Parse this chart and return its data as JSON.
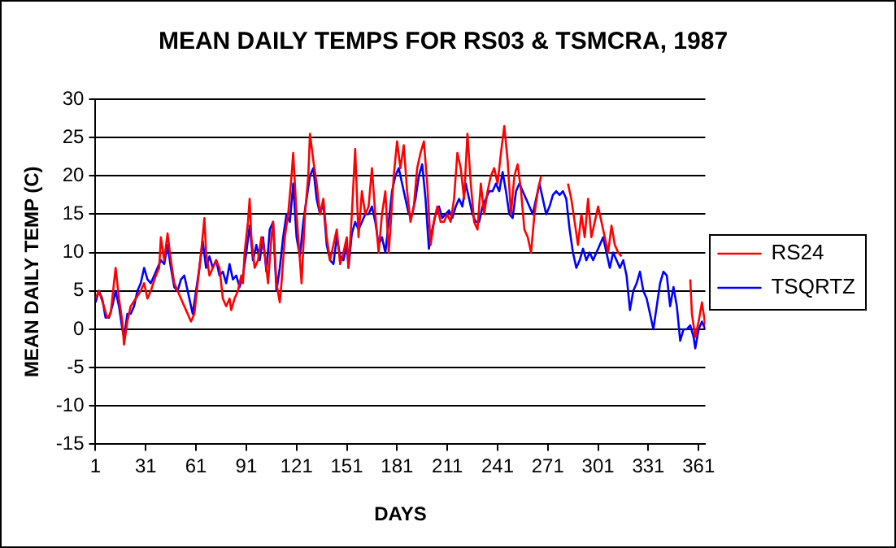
{
  "chart_data": {
    "type": "line",
    "title": "MEAN DAILY TEMPS FOR RS03 & TSMCRA, 1987",
    "xlabel": "DAYS",
    "ylabel": "MEAN DAILY TEMP (C)",
    "xlim": [
      1,
      365
    ],
    "xticks": [
      1,
      31,
      61,
      91,
      121,
      151,
      181,
      211,
      241,
      271,
      301,
      331,
      361
    ],
    "ylim": [
      -15,
      30
    ],
    "yticks": [
      -15,
      -10,
      -5,
      0,
      5,
      10,
      15,
      20,
      25,
      30
    ],
    "grid": "y",
    "legend": "right",
    "marker": "none",
    "line_style": "solid",
    "series": [
      {
        "name": "RS24",
        "color": "#ff0000",
        "x": [
          1,
          3,
          6,
          8,
          10,
          12,
          13,
          15,
          17,
          18,
          20,
          22,
          25,
          28,
          30,
          32,
          34,
          37,
          39,
          40,
          42,
          44,
          46,
          48,
          50,
          52,
          54,
          56,
          58,
          60,
          62,
          64,
          66,
          67,
          69,
          71,
          73,
          75,
          77,
          79,
          81,
          82,
          84,
          86,
          88,
          89,
          90,
          92,
          93,
          94,
          96,
          98,
          100,
          102,
          104,
          106,
          107,
          109,
          111,
          112,
          114,
          116,
          118,
          119,
          121,
          123,
          124,
          126,
          128,
          129,
          131,
          133,
          135,
          137,
          139,
          141,
          143,
          145,
          147,
          149,
          151,
          152,
          154,
          156,
          158,
          160,
          162,
          164,
          166,
          168,
          170,
          172,
          174,
          176,
          177,
          179,
          181,
          183,
          185,
          187,
          189,
          191,
          193,
          195,
          197,
          199,
          201,
          203,
          205,
          207,
          209,
          211,
          213,
          215,
          217,
          219,
          221,
          223,
          225,
          227,
          229,
          231,
          233,
          235,
          237,
          239,
          241,
          243,
          245,
          247,
          249,
          251,
          253,
          255,
          257,
          259,
          261,
          263,
          265,
          267,
          271,
          279,
          283,
          285,
          287,
          289,
          291,
          293,
          295,
          297,
          299,
          301,
          303,
          305,
          307,
          309,
          311,
          313,
          315,
          335,
          356,
          357,
          359,
          361,
          363,
          364,
          365
        ],
        "values": [
          4,
          5,
          3,
          1.5,
          2,
          6,
          8,
          4,
          1,
          -2,
          1,
          3,
          4,
          5,
          6,
          4,
          5,
          7,
          8,
          12,
          9,
          12.5,
          9,
          6,
          5,
          4,
          3,
          2,
          1,
          2,
          6,
          10,
          14.5,
          10,
          7,
          8,
          9,
          8,
          4,
          3,
          4,
          2.5,
          4,
          5,
          7,
          6,
          10,
          14,
          17,
          12,
          8,
          9,
          12,
          10,
          6,
          12,
          14,
          6,
          3.5,
          6,
          12,
          15,
          20,
          23,
          15,
          9,
          6,
          15,
          20,
          25.5,
          22,
          19,
          15,
          17,
          12,
          9,
          11,
          13,
          8.5,
          10,
          12,
          8,
          15,
          23.5,
          12,
          18,
          15,
          16,
          21,
          15,
          10,
          15,
          18,
          10,
          13,
          20,
          24.5,
          21,
          24,
          18,
          14,
          16,
          21,
          23,
          24.5,
          19,
          11,
          14,
          16,
          14,
          14,
          15,
          14,
          17,
          23,
          21,
          17,
          25.5,
          19,
          14,
          13,
          19,
          15,
          18,
          20,
          21,
          19,
          23,
          26.5,
          22,
          15,
          20,
          21.5,
          18,
          13,
          12,
          10,
          15,
          18,
          20,
          null,
          null,
          19,
          17,
          14,
          11,
          15,
          12,
          17,
          12,
          14,
          16,
          14,
          12,
          10,
          13.5,
          11,
          10,
          9.5,
          null,
          6.5,
          2,
          -1,
          1,
          3.5,
          2,
          0.5
        ]
      },
      {
        "name": "TSQRTZ",
        "color": "#0000ff",
        "x": [
          1,
          3,
          5,
          7,
          9,
          11,
          13,
          15,
          17,
          18,
          20,
          22,
          24,
          26,
          28,
          30,
          32,
          34,
          36,
          38,
          40,
          42,
          44,
          46,
          48,
          50,
          52,
          54,
          56,
          58,
          59,
          61,
          63,
          65,
          67,
          69,
          71,
          73,
          75,
          77,
          79,
          81,
          83,
          85,
          87,
          89,
          91,
          93,
          95,
          97,
          99,
          101,
          103,
          105,
          107,
          109,
          111,
          113,
          115,
          117,
          119,
          121,
          123,
          125,
          127,
          129,
          131,
          133,
          135,
          137,
          139,
          141,
          143,
          145,
          147,
          149,
          151,
          152,
          154,
          156,
          158,
          160,
          162,
          164,
          166,
          168,
          170,
          172,
          174,
          176,
          178,
          180,
          182,
          184,
          186,
          188,
          190,
          192,
          194,
          196,
          198,
          200,
          202,
          204,
          206,
          208,
          210,
          212,
          214,
          216,
          218,
          220,
          222,
          224,
          226,
          228,
          230,
          232,
          234,
          236,
          238,
          240,
          242,
          244,
          246,
          248,
          250,
          252,
          254,
          256,
          258,
          260,
          262,
          264,
          266,
          268,
          270,
          272,
          274,
          276,
          278,
          280,
          282,
          284,
          286,
          288,
          290,
          292,
          294,
          296,
          298,
          300,
          302,
          304,
          306,
          308,
          310,
          312,
          314,
          316,
          318,
          320,
          322,
          324,
          326,
          328,
          330,
          332,
          334,
          336,
          338,
          340,
          342,
          344,
          346,
          348,
          350,
          352,
          354,
          356,
          358,
          359,
          361,
          363,
          365
        ],
        "values": [
          3.5,
          5,
          4,
          1.5,
          1.5,
          3,
          5,
          3,
          0,
          -1,
          2,
          2,
          3,
          5,
          6,
          8,
          6.5,
          6,
          7,
          8,
          9,
          8.5,
          11,
          8,
          5.5,
          5,
          6.5,
          7,
          5,
          3,
          2,
          5,
          8,
          11.5,
          8,
          9.5,
          8,
          9,
          7,
          7.5,
          6,
          8.5,
          6.5,
          7,
          5.5,
          7,
          10,
          13.5,
          9,
          11,
          9,
          12,
          7.5,
          13,
          14,
          5,
          8,
          12,
          15,
          14,
          19,
          12,
          9.5,
          14,
          17,
          20,
          21,
          17,
          15,
          16.5,
          11,
          9,
          8.5,
          12,
          9.5,
          9,
          11,
          8,
          12.5,
          14,
          13,
          14,
          15,
          15,
          16,
          14,
          11,
          12,
          10,
          14,
          18,
          20,
          21,
          19,
          17,
          15,
          15,
          17,
          20,
          21.5,
          17,
          10.5,
          13,
          15,
          16,
          14.5,
          15,
          15.5,
          14.5,
          16,
          17,
          16,
          19,
          17,
          15,
          14,
          14,
          16,
          17,
          18,
          18,
          19,
          18,
          20.5,
          18,
          15,
          14.5,
          18,
          19,
          18,
          17,
          16,
          15,
          17,
          19,
          17,
          15,
          16,
          17.5,
          18,
          17.5,
          18,
          17,
          13,
          10,
          8,
          9,
          10.5,
          9,
          10,
          9,
          10,
          11,
          12,
          10,
          8,
          10,
          9,
          8,
          9,
          7,
          2.5,
          5,
          6,
          7.5,
          5,
          4,
          2,
          0,
          3,
          6,
          7.5,
          7,
          3,
          5.5,
          3,
          -1.5,
          0,
          0,
          0.5,
          -1,
          -2.5,
          0,
          1,
          0
        ]
      }
    ]
  }
}
